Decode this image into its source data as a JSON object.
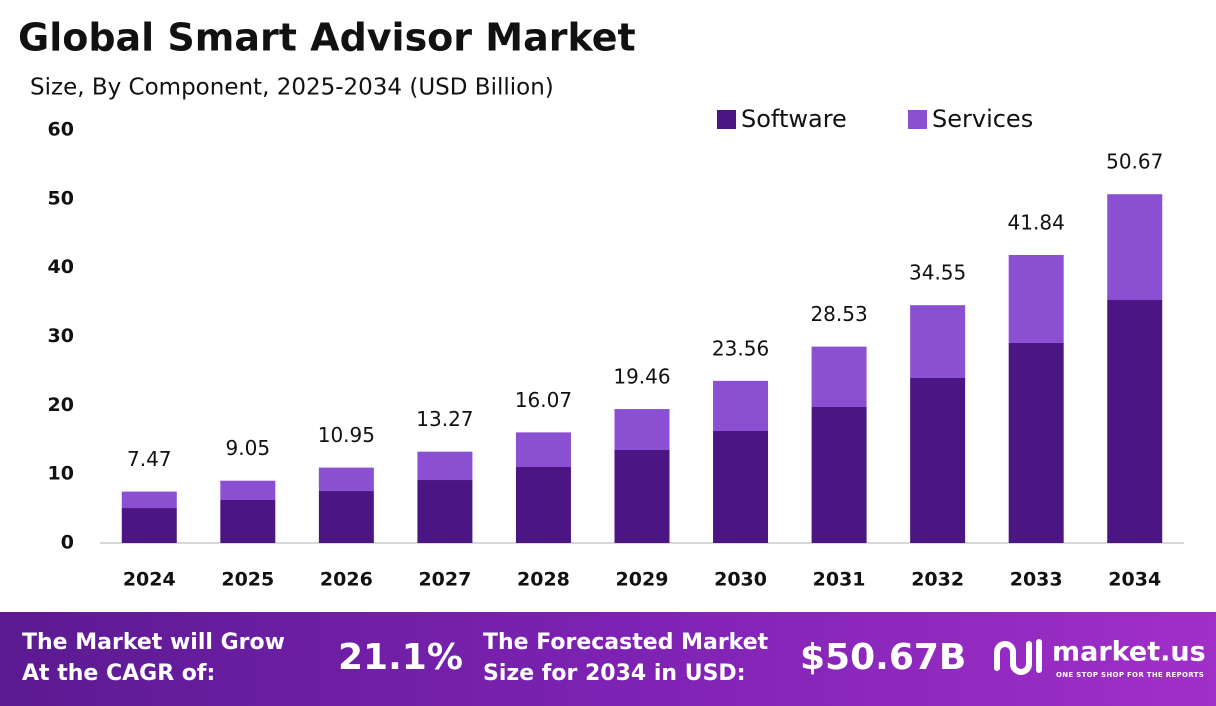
{
  "chart_data": {
    "type": "stacked_bar",
    "title": "Global Smart Advisor Market",
    "subtitle": "Size, By Component, 2025-2034 (USD Billion)",
    "categories": [
      "2024",
      "2025",
      "2026",
      "2027",
      "2028",
      "2029",
      "2030",
      "2031",
      "2032",
      "2033",
      "2034"
    ],
    "series": [
      {
        "name": "Software",
        "color": "#4b1683",
        "values": [
          5.08,
          6.25,
          7.55,
          9.15,
          11.04,
          13.51,
          16.27,
          19.76,
          23.97,
          29.06,
          35.3
        ]
      },
      {
        "name": "Services",
        "color": "#8b4fd1",
        "values": [
          2.39,
          2.8,
          3.4,
          4.12,
          5.03,
          5.95,
          7.29,
          8.77,
          10.58,
          12.78,
          15.37
        ]
      }
    ],
    "totals": [
      7.47,
      9.05,
      10.95,
      13.27,
      16.07,
      19.46,
      23.56,
      28.53,
      34.55,
      41.84,
      50.67
    ],
    "ylim": [
      0,
      60
    ],
    "yticks": [
      0,
      10,
      20,
      30,
      40,
      50,
      60
    ],
    "grid": false
  },
  "footer": {
    "cagr_label": [
      "The Market will Grow",
      "At the CAGR of:"
    ],
    "cagr_value": "21.1%",
    "forecast_label": [
      "The Forecasted Market",
      "Size for 2034 in USD:"
    ],
    "forecast_value": "$50.67B",
    "brand": "market.us",
    "tagline": "ONE STOP SHOP FOR THE REPORTS"
  }
}
